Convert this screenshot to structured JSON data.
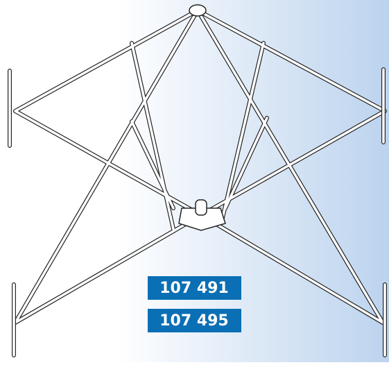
{
  "labels": [
    "107 491",
    "107 495"
  ]
}
